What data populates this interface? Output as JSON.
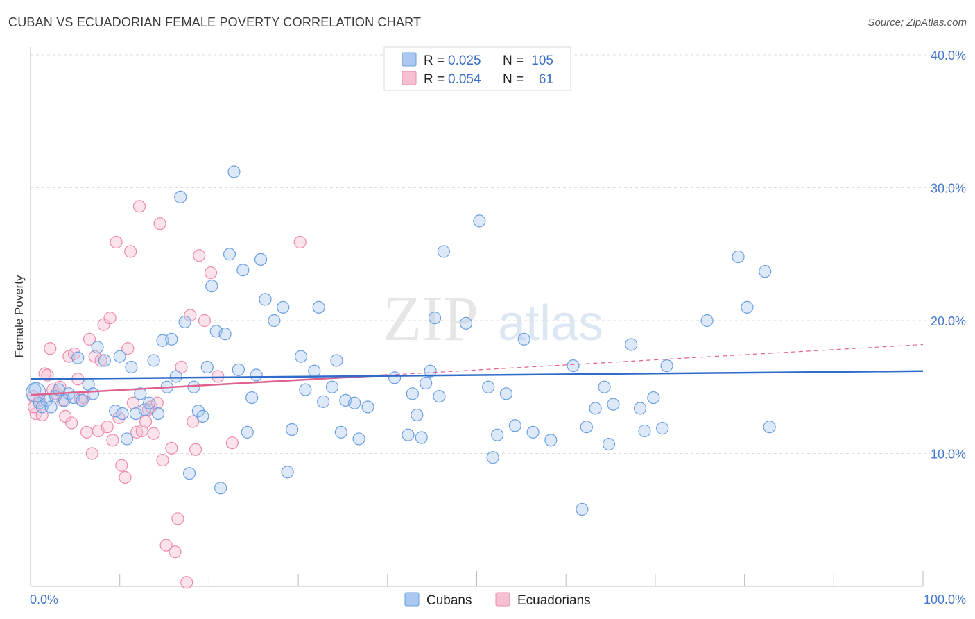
{
  "header": {
    "title": "CUBAN VS ECUADORIAN FEMALE POVERTY CORRELATION CHART",
    "source": "Source: ZipAtlas.com"
  },
  "colors": {
    "cuban": "#6a9fe0",
    "cuban_fill": "#aac8f0",
    "cuban_line": "#2f6bc9",
    "ecuadorian": "#ee8aaa",
    "ecuadorian_fill": "#f7c0d2",
    "ecuadorian_line": "#e0608e",
    "grid": "#dddddd",
    "axis_text": "#4477cc"
  },
  "legend": {
    "rows": [
      {
        "r_label": "R =",
        "r_value": "0.025",
        "n_label": "N =",
        "n_value": "105"
      },
      {
        "r_label": "R =",
        "r_value": "0.054",
        "n_label": "N =",
        "n_value": "61"
      }
    ]
  },
  "bottom_legend": {
    "items": [
      {
        "label": "Cubans"
      },
      {
        "label": "Ecuadorians"
      }
    ]
  },
  "watermark": {
    "zip": "ZIP",
    "atlas": "atlas"
  },
  "chart_data": {
    "type": "scatter",
    "title": "CUBAN VS ECUADORIAN FEMALE POVERTY CORRELATION CHART",
    "xlabel": "",
    "ylabel": "Female Poverty",
    "xlim": [
      0,
      100
    ],
    "ylim": [
      0,
      40
    ],
    "x_tick_labels": [
      "0.0%",
      "100.0%"
    ],
    "y_ticks": [
      10,
      20,
      30,
      40
    ],
    "y_tick_labels": [
      "10.0%",
      "20.0%",
      "30.0%",
      "40.0%"
    ],
    "legend_position": "top-center",
    "series": [
      {
        "name": "Cubans",
        "R": 0.025,
        "N": 105,
        "trend": {
          "x": [
            0,
            100
          ],
          "y": [
            15.6,
            16.2
          ]
        },
        "points": [
          [
            0.5,
            14.8
          ],
          [
            1.0,
            13.8
          ],
          [
            1.3,
            13.5
          ],
          [
            1.8,
            14.0
          ],
          [
            2.3,
            13.5
          ],
          [
            2.8,
            14.3
          ],
          [
            3.2,
            14.8
          ],
          [
            3.8,
            14.0
          ],
          [
            4.3,
            14.5
          ],
          [
            4.8,
            14.2
          ],
          [
            5.3,
            17.2
          ],
          [
            5.8,
            14.0
          ],
          [
            6.5,
            15.2
          ],
          [
            7.0,
            14.5
          ],
          [
            7.5,
            18.0
          ],
          [
            8.3,
            17.0
          ],
          [
            9.5,
            13.2
          ],
          [
            10.0,
            17.3
          ],
          [
            10.3,
            13.0
          ],
          [
            10.8,
            11.1
          ],
          [
            11.3,
            16.5
          ],
          [
            11.8,
            13.0
          ],
          [
            12.3,
            14.5
          ],
          [
            12.8,
            13.3
          ],
          [
            13.3,
            13.8
          ],
          [
            13.8,
            17.0
          ],
          [
            14.3,
            13.0
          ],
          [
            14.8,
            18.5
          ],
          [
            15.3,
            15.0
          ],
          [
            15.8,
            18.6
          ],
          [
            16.3,
            15.8
          ],
          [
            16.8,
            29.3
          ],
          [
            17.3,
            19.9
          ],
          [
            17.8,
            8.5
          ],
          [
            18.3,
            15.0
          ],
          [
            18.8,
            13.2
          ],
          [
            19.3,
            12.8
          ],
          [
            19.8,
            16.5
          ],
          [
            20.3,
            22.6
          ],
          [
            20.8,
            19.2
          ],
          [
            21.3,
            7.4
          ],
          [
            21.8,
            19.0
          ],
          [
            22.3,
            25.0
          ],
          [
            22.8,
            31.2
          ],
          [
            23.3,
            16.3
          ],
          [
            23.8,
            23.8
          ],
          [
            24.3,
            11.6
          ],
          [
            24.8,
            14.2
          ],
          [
            25.3,
            15.9
          ],
          [
            25.8,
            24.6
          ],
          [
            26.3,
            21.6
          ],
          [
            27.3,
            20.0
          ],
          [
            28.3,
            21.0
          ],
          [
            28.8,
            8.6
          ],
          [
            29.3,
            11.8
          ],
          [
            30.3,
            17.3
          ],
          [
            30.8,
            14.8
          ],
          [
            31.8,
            16.2
          ],
          [
            32.3,
            21.0
          ],
          [
            32.8,
            13.9
          ],
          [
            33.8,
            15.0
          ],
          [
            34.3,
            17.0
          ],
          [
            34.8,
            11.6
          ],
          [
            35.3,
            14.0
          ],
          [
            36.3,
            13.8
          ],
          [
            36.8,
            11.1
          ],
          [
            37.8,
            13.5
          ],
          [
            40.8,
            15.7
          ],
          [
            42.3,
            11.4
          ],
          [
            42.8,
            14.5
          ],
          [
            43.3,
            12.9
          ],
          [
            43.8,
            11.2
          ],
          [
            44.3,
            15.3
          ],
          [
            44.8,
            16.2
          ],
          [
            45.3,
            20.2
          ],
          [
            45.8,
            14.3
          ],
          [
            46.3,
            25.2
          ],
          [
            48.8,
            19.8
          ],
          [
            50.3,
            27.5
          ],
          [
            51.3,
            15.0
          ],
          [
            51.8,
            9.7
          ],
          [
            52.3,
            11.4
          ],
          [
            53.3,
            14.5
          ],
          [
            54.3,
            12.1
          ],
          [
            55.3,
            18.6
          ],
          [
            56.3,
            11.6
          ],
          [
            58.3,
            11.0
          ],
          [
            60.8,
            16.6
          ],
          [
            61.8,
            5.8
          ],
          [
            62.3,
            12.0
          ],
          [
            63.3,
            13.4
          ],
          [
            64.3,
            15.0
          ],
          [
            64.8,
            10.7
          ],
          [
            65.3,
            13.7
          ],
          [
            67.3,
            18.2
          ],
          [
            68.3,
            13.4
          ],
          [
            68.8,
            11.7
          ],
          [
            69.8,
            14.2
          ],
          [
            70.8,
            11.9
          ],
          [
            71.3,
            16.6
          ],
          [
            75.8,
            20.0
          ],
          [
            79.3,
            24.8
          ],
          [
            80.3,
            21.0
          ],
          [
            82.3,
            23.7
          ],
          [
            82.8,
            12.0
          ]
        ]
      },
      {
        "name": "Ecuadorians",
        "R": 0.054,
        "N": 61,
        "trend_solid": {
          "x": [
            0,
            40
          ],
          "y": [
            14.4,
            15.9
          ]
        },
        "trend_dashed": {
          "x": [
            40,
            100
          ],
          "y": [
            15.9,
            18.2
          ]
        },
        "points": [
          [
            0.3,
            14.3
          ],
          [
            0.6,
            13.0
          ],
          [
            1.0,
            14.0
          ],
          [
            1.3,
            12.9
          ],
          [
            1.6,
            16.0
          ],
          [
            1.9,
            15.9
          ],
          [
            2.2,
            17.9
          ],
          [
            2.5,
            14.8
          ],
          [
            2.9,
            14.5
          ],
          [
            3.3,
            15.0
          ],
          [
            3.6,
            14.0
          ],
          [
            3.9,
            12.8
          ],
          [
            4.3,
            17.3
          ],
          [
            4.6,
            12.3
          ],
          [
            4.9,
            17.5
          ],
          [
            5.3,
            15.6
          ],
          [
            5.6,
            14.1
          ],
          [
            6.0,
            14.2
          ],
          [
            6.3,
            11.6
          ],
          [
            6.6,
            18.6
          ],
          [
            6.9,
            10.0
          ],
          [
            7.2,
            17.3
          ],
          [
            7.6,
            11.7
          ],
          [
            7.9,
            17.0
          ],
          [
            8.2,
            19.7
          ],
          [
            8.6,
            12.0
          ],
          [
            8.9,
            20.2
          ],
          [
            9.2,
            11.0
          ],
          [
            9.6,
            25.9
          ],
          [
            9.9,
            12.7
          ],
          [
            10.2,
            9.1
          ],
          [
            10.6,
            8.2
          ],
          [
            10.9,
            17.9
          ],
          [
            11.2,
            25.2
          ],
          [
            11.5,
            13.8
          ],
          [
            11.9,
            11.6
          ],
          [
            12.2,
            28.6
          ],
          [
            12.5,
            11.7
          ],
          [
            12.9,
            12.4
          ],
          [
            13.2,
            13.3
          ],
          [
            13.5,
            13.5
          ],
          [
            13.8,
            11.5
          ],
          [
            14.2,
            13.8
          ],
          [
            14.5,
            27.3
          ],
          [
            14.8,
            9.5
          ],
          [
            15.2,
            3.1
          ],
          [
            15.8,
            10.4
          ],
          [
            16.2,
            2.6
          ],
          [
            16.5,
            5.1
          ],
          [
            16.9,
            16.5
          ],
          [
            17.5,
            0.3
          ],
          [
            17.9,
            20.4
          ],
          [
            18.2,
            12.4
          ],
          [
            18.5,
            10.3
          ],
          [
            18.9,
            24.9
          ],
          [
            19.5,
            20.0
          ],
          [
            20.2,
            23.6
          ],
          [
            21.0,
            15.8
          ],
          [
            22.6,
            10.8
          ],
          [
            30.2,
            25.9
          ],
          [
            0.4,
            13.5
          ]
        ]
      }
    ]
  }
}
